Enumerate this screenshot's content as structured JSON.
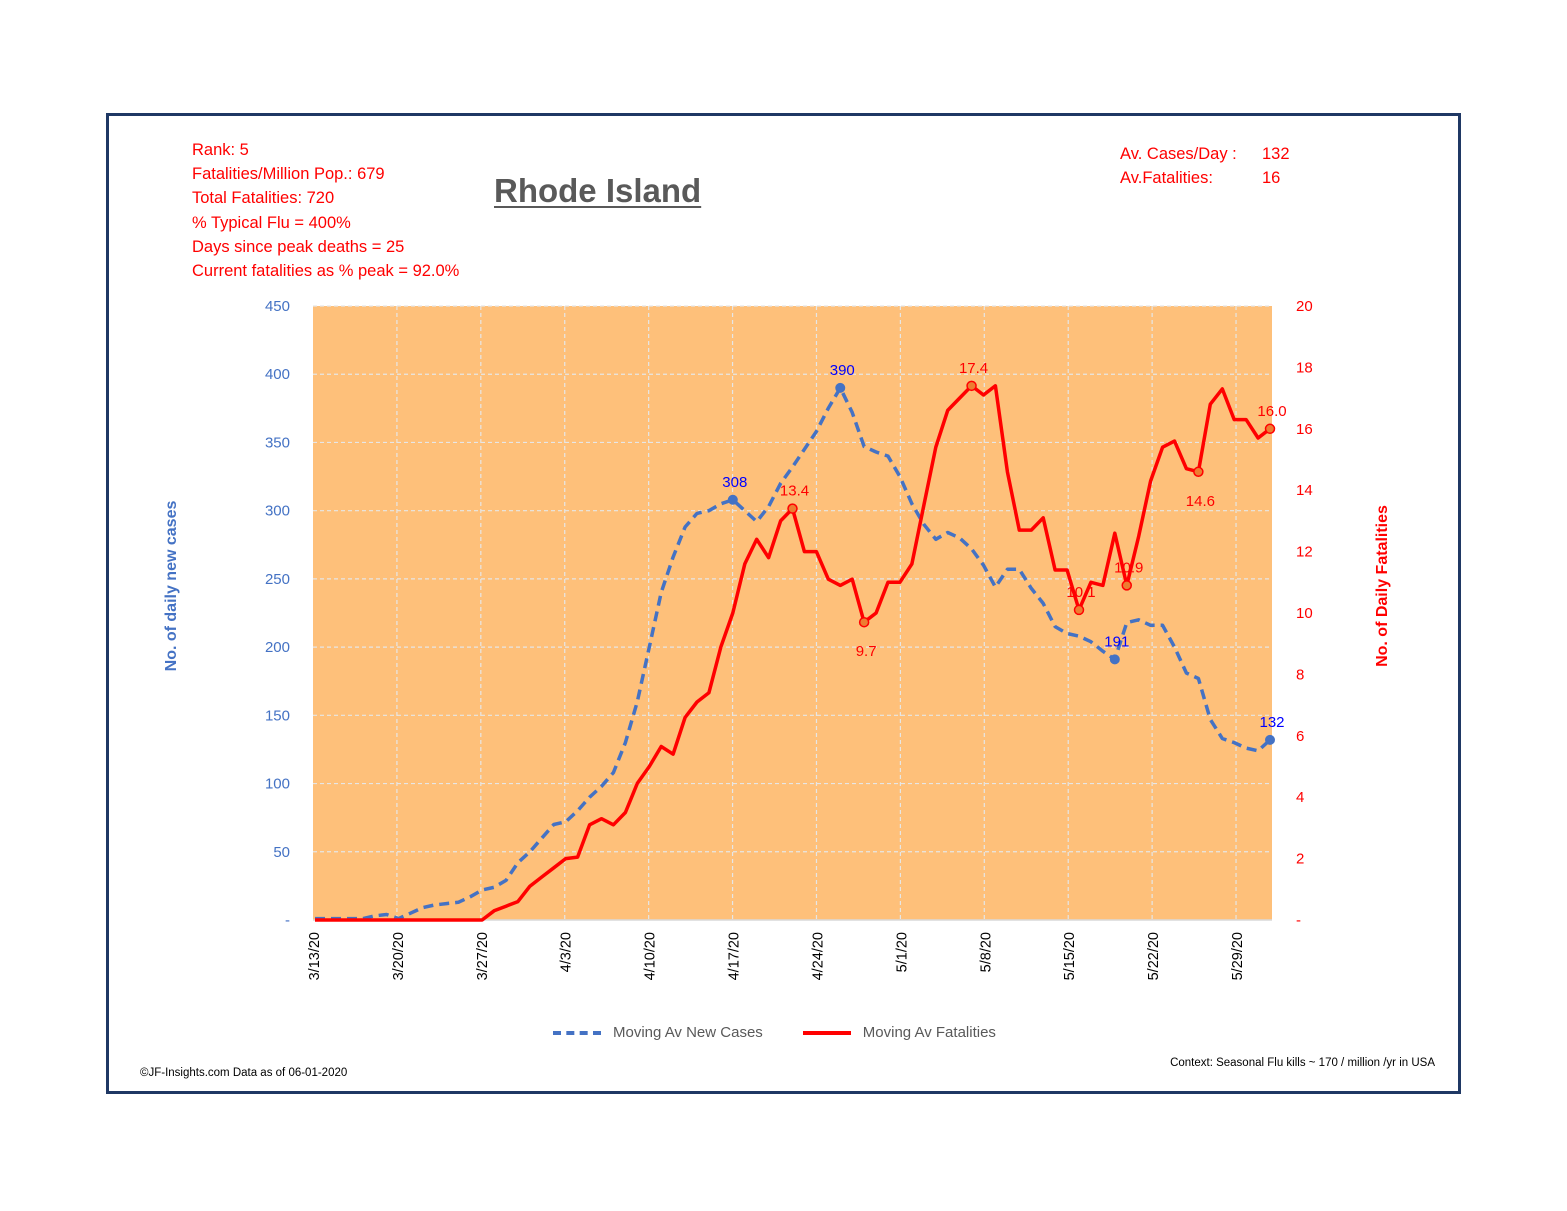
{
  "header": {
    "title": "Rhode Island",
    "stats": [
      "Rank: 5",
      "Fatalities/Million  Pop.: 679",
      "Total Fatalities: 720",
      "% Typical Flu = 400%",
      "Days since peak deaths = 25",
      "Current  fatalities  as % peak = 92.0%"
    ],
    "avg_cases_label": "Av. Cases/Day :",
    "avg_cases_value": "132",
    "avg_fatalities_label": "Av.Fatalities:",
    "avg_fatalities_value": "16"
  },
  "footer": {
    "source": "©JF-Insights.com   Data as of 06-01-2020",
    "context": "Context: Seasonal Flu kills ~ 170 / million /yr in USA"
  },
  "colors": {
    "cases": "#4472c4",
    "fatalities": "#ff0000",
    "plot_bg": "#fec07a",
    "frame": "#1f3864"
  },
  "chart_data": {
    "type": "line",
    "title": "Rhode Island",
    "x_start": "3/13/20",
    "x_end": "6/1/20",
    "xticks": [
      "3/13/20",
      "3/20/20",
      "3/27/20",
      "4/3/20",
      "4/10/20",
      "4/17/20",
      "4/24/20",
      "5/1/20",
      "5/8/20",
      "5/15/20",
      "5/22/20",
      "5/29/20"
    ],
    "xtick_step_days": 7,
    "ylabel_left": "No. of daily new cases",
    "ylabel_right": "No. of Daily Fatalities",
    "ylim_left": [
      0,
      450
    ],
    "ylim_right": [
      0,
      20
    ],
    "yticks_left": [
      "-",
      "50",
      "100",
      "150",
      "200",
      "250",
      "300",
      "350",
      "400",
      "450"
    ],
    "yticks_right": [
      "-",
      "2",
      "4",
      "6",
      "8",
      "10",
      "12",
      "14",
      "16",
      "18",
      "20"
    ],
    "grid": true,
    "legend_position": "bottom",
    "series": [
      {
        "name": "Moving Av New Cases",
        "axis": "left",
        "style": "dashed",
        "values": [
          1,
          1,
          1,
          1,
          1,
          3,
          4,
          1,
          5,
          9,
          11,
          12,
          13,
          17,
          22,
          24,
          29,
          42,
          50,
          60,
          70,
          72,
          80,
          90,
          98,
          108,
          130,
          160,
          200,
          240,
          266,
          288,
          298,
          300,
          305,
          308,
          300,
          292,
          303,
          320,
          332,
          345,
          358,
          375,
          390,
          372,
          347,
          343,
          340,
          325,
          305,
          290,
          279,
          284,
          280,
          272,
          260,
          244,
          257,
          257,
          243,
          232,
          215,
          210,
          208,
          204,
          197,
          191,
          218,
          220,
          216,
          216,
          200,
          181,
          177,
          147,
          133,
          130,
          126,
          124,
          132
        ],
        "labels": [
          {
            "index": 35,
            "text": "308"
          },
          {
            "index": 44,
            "text": "390"
          },
          {
            "index": 67,
            "text": "191"
          },
          {
            "index": 80,
            "text": "132"
          }
        ]
      },
      {
        "name": "Moving Av Fatalities",
        "axis": "right",
        "style": "solid",
        "values": [
          0,
          0,
          0,
          0,
          0,
          0,
          0,
          0,
          0,
          0,
          0,
          0,
          0,
          0,
          0,
          0.3,
          0.45,
          0.6,
          1.1,
          1.4,
          1.7,
          2.0,
          2.05,
          3.1,
          3.3,
          3.1,
          3.5,
          4.45,
          5.0,
          5.65,
          5.4,
          6.6,
          7.1,
          7.4,
          8.9,
          10.0,
          11.6,
          12.4,
          11.8,
          13.0,
          13.4,
          12.0,
          12.0,
          11.1,
          10.9,
          11.1,
          9.7,
          10.0,
          11.0,
          11.0,
          11.6,
          13.5,
          15.4,
          16.6,
          17.0,
          17.4,
          17.1,
          17.4,
          14.6,
          12.7,
          12.7,
          13.1,
          11.4,
          11.4,
          10.1,
          11.0,
          10.9,
          12.6,
          10.9,
          12.5,
          14.3,
          15.4,
          15.6,
          14.7,
          14.6,
          16.8,
          17.3,
          16.3,
          16.3,
          15.7,
          16.0
        ],
        "labels": [
          {
            "index": 40,
            "text": "13.4"
          },
          {
            "index": 46,
            "text": "9.7"
          },
          {
            "index": 55,
            "text": "17.4"
          },
          {
            "index": 64,
            "text": "10.1"
          },
          {
            "index": 68,
            "text": "10.9"
          },
          {
            "index": 74,
            "text": "14.6"
          },
          {
            "index": 80,
            "text": "16.0"
          }
        ]
      }
    ]
  }
}
